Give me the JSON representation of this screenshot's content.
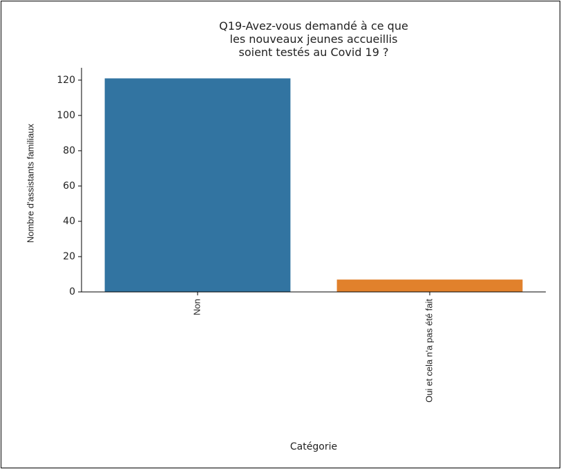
{
  "chart_data": {
    "type": "bar",
    "title": "Q19-Avez-vous demandé à ce que\nles nouveaux jeunes accueillis\nsoient testés au Covid 19 ?",
    "x_label": "Catégorie",
    "y_label": "Nombre d'assistants familiaux",
    "categories": [
      "Non",
      "Oui et cela n'a pas été fait"
    ],
    "values": [
      121,
      7
    ],
    "colors": [
      "#3274a1",
      "#e1812c"
    ],
    "ylim": [
      0,
      127
    ],
    "yticks": [
      0,
      20,
      40,
      60,
      80,
      100,
      120
    ]
  }
}
